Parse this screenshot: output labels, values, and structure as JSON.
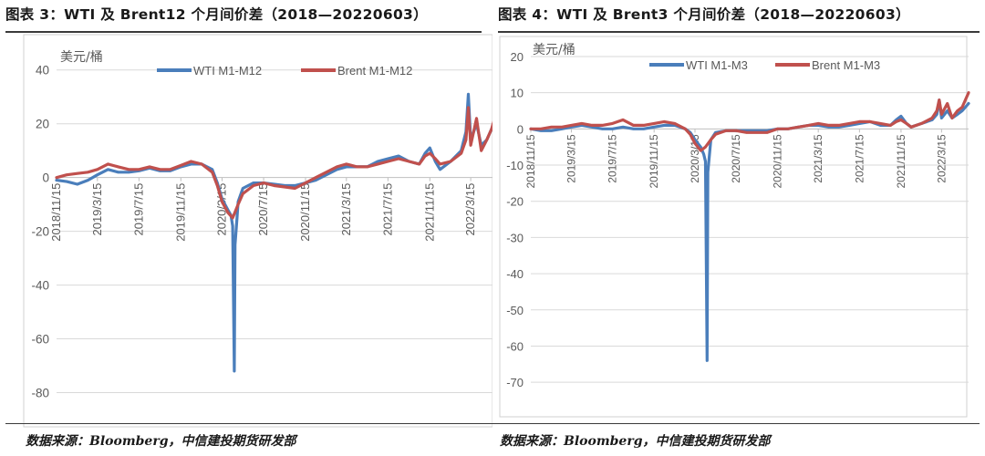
{
  "colors": {
    "wti": "#4a7ebb",
    "brent": "#c0504d",
    "grid": "#d9d9d9",
    "axis": "#bfbfbf",
    "frame": "#d0d0d0"
  },
  "source_text": "数据来源：Bloomberg，中信建投期货研发部",
  "chart_data": [
    {
      "type": "line",
      "title": "图表 3：WTI 及 Brent12 个月间价差（2018—20220603）",
      "ylabel": "美元/桶",
      "xlabel": "",
      "ylim": [
        -90,
        45
      ],
      "yticks": [
        -80,
        -60,
        -40,
        -20,
        0,
        20,
        40
      ],
      "xlim": [
        "2018-11-15",
        "2022-06-03"
      ],
      "xticks": [
        "2018/11/15",
        "2019/3/15",
        "2019/7/15",
        "2019/11/15",
        "2020/3/15",
        "2020/7/15",
        "2020/11/15",
        "2021/3/15",
        "2021/7/15",
        "2021/11/15",
        "2022/3/15"
      ],
      "legend_position": "top",
      "grid": true,
      "series": [
        {
          "name": "WTI M1-M12",
          "x": [
            "2018-11-15",
            "2018-12-15",
            "2019-01-15",
            "2019-02-15",
            "2019-03-15",
            "2019-04-15",
            "2019-05-15",
            "2019-06-15",
            "2019-07-15",
            "2019-08-15",
            "2019-09-15",
            "2019-10-15",
            "2019-11-15",
            "2019-12-15",
            "2020-01-15",
            "2020-02-15",
            "2020-03-01",
            "2020-03-15",
            "2020-04-01",
            "2020-04-10",
            "2020-04-15",
            "2020-04-20",
            "2020-04-22",
            "2020-04-28",
            "2020-05-01",
            "2020-05-15",
            "2020-06-15",
            "2020-07-15",
            "2020-08-15",
            "2020-09-15",
            "2020-10-15",
            "2020-11-15",
            "2020-12-15",
            "2021-01-15",
            "2021-02-15",
            "2021-03-15",
            "2021-04-15",
            "2021-05-15",
            "2021-06-15",
            "2021-07-15",
            "2021-08-15",
            "2021-09-15",
            "2021-10-15",
            "2021-11-01",
            "2021-11-15",
            "2021-12-01",
            "2021-12-15",
            "2022-01-15",
            "2022-02-15",
            "2022-03-01",
            "2022-03-08",
            "2022-03-15",
            "2022-04-01",
            "2022-04-15",
            "2022-05-01",
            "2022-05-15",
            "2022-06-03"
          ],
          "values": [
            -1,
            -1.5,
            -2.5,
            -1,
            1,
            3,
            2,
            2,
            2.5,
            3.5,
            2.5,
            2.5,
            4,
            5,
            5,
            3,
            -2,
            -8,
            -12,
            -14,
            -18,
            -72,
            -25,
            -15,
            -9,
            -4,
            -2,
            -2,
            -2.5,
            -3,
            -3,
            -2,
            -1,
            1,
            3,
            4,
            4,
            4,
            6,
            7,
            8,
            6,
            5,
            9,
            11,
            6,
            3,
            6,
            10,
            17,
            31,
            14,
            20,
            12,
            14,
            18,
            22
          ]
        },
        {
          "name": "Brent M1-M12",
          "x": [
            "2018-11-15",
            "2018-12-15",
            "2019-01-15",
            "2019-02-15",
            "2019-03-15",
            "2019-04-15",
            "2019-05-15",
            "2019-06-15",
            "2019-07-15",
            "2019-08-15",
            "2019-09-15",
            "2019-10-15",
            "2019-11-15",
            "2019-12-15",
            "2020-01-15",
            "2020-02-15",
            "2020-03-01",
            "2020-03-15",
            "2020-04-01",
            "2020-04-15",
            "2020-05-01",
            "2020-05-15",
            "2020-06-15",
            "2020-07-15",
            "2020-08-15",
            "2020-09-15",
            "2020-10-15",
            "2020-11-15",
            "2020-12-15",
            "2021-01-15",
            "2021-02-15",
            "2021-03-15",
            "2021-04-15",
            "2021-05-15",
            "2021-06-15",
            "2021-07-15",
            "2021-08-15",
            "2021-09-15",
            "2021-10-15",
            "2021-11-01",
            "2021-11-15",
            "2021-12-01",
            "2021-12-15",
            "2022-01-15",
            "2022-02-15",
            "2022-03-01",
            "2022-03-08",
            "2022-03-15",
            "2022-04-01",
            "2022-04-15",
            "2022-05-01",
            "2022-05-15",
            "2022-06-03"
          ],
          "values": [
            0,
            1,
            1.5,
            2,
            3,
            5,
            4,
            3,
            3,
            4,
            3,
            3,
            4.5,
            6,
            5,
            2,
            -3,
            -9,
            -13,
            -15,
            -10,
            -6,
            -3,
            -2,
            -3,
            -3.5,
            -4,
            -2,
            0,
            2,
            4,
            5,
            4,
            4,
            5,
            6,
            7,
            6,
            5,
            8,
            9,
            7,
            5,
            6,
            9,
            14,
            26,
            12,
            22,
            10,
            14,
            18,
            26
          ]
        }
      ]
    },
    {
      "type": "line",
      "title": "图表 4：WTI 及 Brent3 个月间价差（2018—20220603）",
      "ylabel": "美元/桶",
      "xlabel": "",
      "ylim": [
        -75,
        22
      ],
      "yticks": [
        -70,
        -60,
        -50,
        -40,
        -30,
        -20,
        -10,
        0,
        10,
        20
      ],
      "xlim": [
        "2018-11-15",
        "2022-06-03"
      ],
      "xticks": [
        "2018/11/15",
        "2019/3/15",
        "2019/7/15",
        "2019/11/15",
        "2020/3/15",
        "2020/7/15",
        "2020/11/15",
        "2021/3/15",
        "2021/7/15",
        "2021/11/15",
        "2022/3/15"
      ],
      "legend_position": "top",
      "grid": true,
      "series": [
        {
          "name": "WTI M1-M3",
          "x": [
            "2018-11-15",
            "2018-12-15",
            "2019-01-15",
            "2019-02-15",
            "2019-03-15",
            "2019-04-15",
            "2019-05-15",
            "2019-06-15",
            "2019-07-15",
            "2019-08-15",
            "2019-09-15",
            "2019-10-15",
            "2019-11-15",
            "2019-12-15",
            "2020-01-15",
            "2020-02-15",
            "2020-03-01",
            "2020-03-15",
            "2020-04-01",
            "2020-04-10",
            "2020-04-15",
            "2020-04-20",
            "2020-04-22",
            "2020-04-28",
            "2020-05-01",
            "2020-05-15",
            "2020-06-15",
            "2020-07-15",
            "2020-08-15",
            "2020-09-15",
            "2020-10-15",
            "2020-11-15",
            "2020-12-15",
            "2021-01-15",
            "2021-02-15",
            "2021-03-15",
            "2021-04-15",
            "2021-05-15",
            "2021-06-15",
            "2021-07-15",
            "2021-08-15",
            "2021-09-15",
            "2021-10-15",
            "2021-11-01",
            "2021-11-15",
            "2021-12-01",
            "2021-12-15",
            "2022-01-15",
            "2022-02-15",
            "2022-03-01",
            "2022-03-08",
            "2022-03-15",
            "2022-04-01",
            "2022-04-15",
            "2022-05-01",
            "2022-05-15",
            "2022-06-03"
          ],
          "values": [
            0,
            -0.5,
            -0.5,
            0,
            0.5,
            1,
            0.5,
            0,
            0,
            0.5,
            0,
            0,
            0.5,
            1,
            1,
            0,
            -1,
            -3,
            -5,
            -7,
            -9,
            -64,
            -12,
            -6,
            -3,
            -1,
            -0.5,
            -0.5,
            -0.5,
            -0.5,
            -0.5,
            0,
            0,
            0.5,
            1,
            1,
            0.5,
            0.5,
            1,
            1.5,
            2,
            1,
            1,
            2.5,
            3.5,
            1.5,
            0.5,
            1.5,
            2.5,
            4,
            8,
            3,
            5,
            3,
            4,
            5,
            7
          ]
        },
        {
          "name": "Brent M1-M3",
          "x": [
            "2018-11-15",
            "2018-12-15",
            "2019-01-15",
            "2019-02-15",
            "2019-03-15",
            "2019-04-15",
            "2019-05-15",
            "2019-06-15",
            "2019-07-15",
            "2019-08-15",
            "2019-09-15",
            "2019-10-15",
            "2019-11-15",
            "2019-12-15",
            "2020-01-15",
            "2020-02-15",
            "2020-03-01",
            "2020-03-15",
            "2020-04-01",
            "2020-04-15",
            "2020-05-01",
            "2020-05-15",
            "2020-06-15",
            "2020-07-15",
            "2020-08-15",
            "2020-09-15",
            "2020-10-15",
            "2020-11-15",
            "2020-12-15",
            "2021-01-15",
            "2021-02-15",
            "2021-03-15",
            "2021-04-15",
            "2021-05-15",
            "2021-06-15",
            "2021-07-15",
            "2021-08-15",
            "2021-09-15",
            "2021-10-15",
            "2021-11-01",
            "2021-11-15",
            "2021-12-01",
            "2021-12-15",
            "2022-01-15",
            "2022-02-15",
            "2022-03-01",
            "2022-03-08",
            "2022-03-15",
            "2022-04-01",
            "2022-04-15",
            "2022-05-01",
            "2022-05-15",
            "2022-06-03"
          ],
          "values": [
            0,
            0,
            0.5,
            0.5,
            1,
            1.5,
            1,
            1,
            1.5,
            2.5,
            1,
            1,
            1.5,
            2,
            1.5,
            0,
            -1.5,
            -4,
            -6,
            -5,
            -3,
            -1.5,
            -0.5,
            -0.5,
            -1,
            -1,
            -1,
            0,
            0,
            0.5,
            1,
            1.5,
            1,
            1,
            1.5,
            2,
            2,
            1.5,
            1,
            2,
            2.5,
            1.5,
            0.5,
            1.5,
            3,
            5,
            8,
            4,
            7,
            3,
            5,
            6,
            10
          ]
        }
      ]
    }
  ]
}
